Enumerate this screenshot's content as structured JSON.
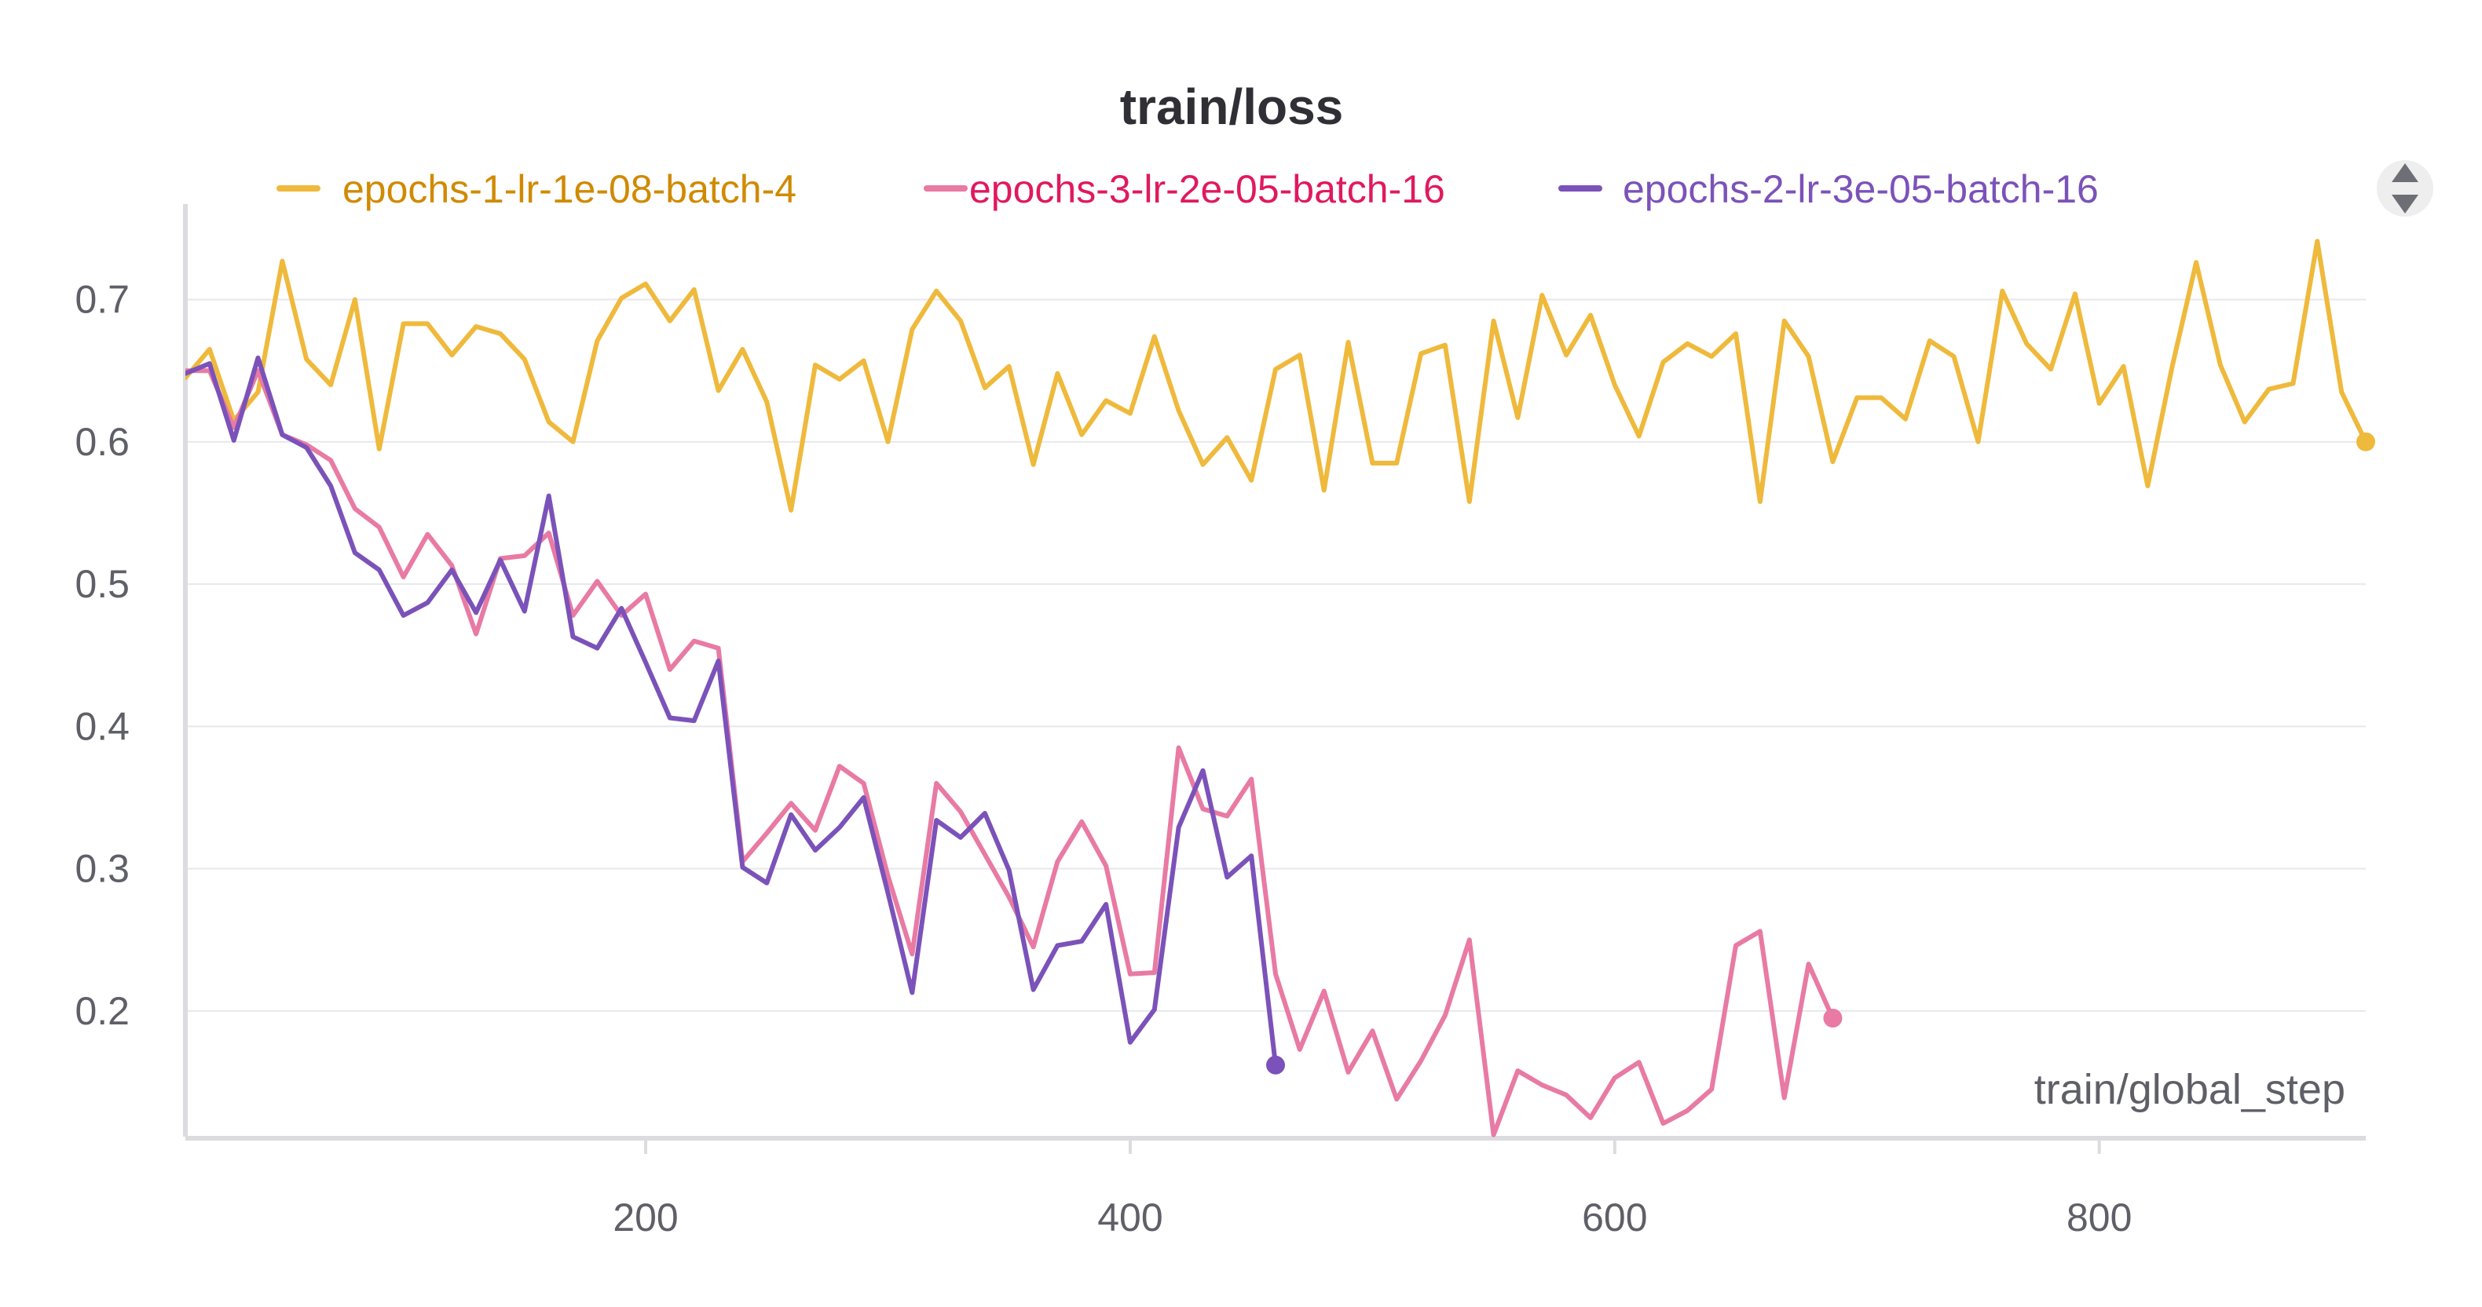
{
  "chart_data": {
    "type": "line",
    "title": "train/loss",
    "xlabel": "train/global_step",
    "ylabel": "",
    "xlim": [
      10,
      910
    ],
    "ylim": [
      0.115,
      0.745
    ],
    "x_ticks": [
      200,
      400,
      600,
      800
    ],
    "y_ticks": [
      0.2,
      0.3,
      0.4,
      0.5,
      0.6,
      0.7
    ],
    "y_tick_labels": [
      "0.2",
      "0.3",
      "0.4",
      "0.5",
      "0.6",
      "0.7"
    ],
    "x_tick_labels": [
      "200",
      "400",
      "600",
      "800"
    ],
    "grid": true,
    "legend_position": "top",
    "legend_control_icon": "sort-arrows-icon",
    "series": [
      {
        "name": "epochs-1-lr-1e-08-batch-4",
        "color": "#efb93c",
        "label_color": "#d08a00",
        "x": [
          10,
          20,
          30,
          40,
          50,
          60,
          70,
          80,
          90,
          100,
          110,
          120,
          130,
          140,
          150,
          160,
          170,
          180,
          190,
          200,
          210,
          220,
          230,
          240,
          250,
          260,
          270,
          280,
          290,
          300,
          310,
          320,
          330,
          340,
          350,
          360,
          370,
          380,
          390,
          400,
          410,
          420,
          430,
          440,
          450,
          460,
          470,
          480,
          490,
          500,
          510,
          520,
          530,
          540,
          550,
          560,
          570,
          580,
          590,
          600,
          610,
          620,
          630,
          640,
          650,
          660,
          670,
          680,
          690,
          700,
          710,
          720,
          730,
          740,
          750,
          760,
          770,
          780,
          790,
          800,
          810,
          820,
          830,
          840,
          850,
          860,
          870,
          880,
          890,
          900,
          910
        ],
        "y": [
          0.645,
          0.665,
          0.615,
          0.635,
          0.727,
          0.658,
          0.64,
          0.7,
          0.595,
          0.683,
          0.683,
          0.661,
          0.681,
          0.676,
          0.658,
          0.614,
          0.6,
          0.671,
          0.701,
          0.711,
          0.685,
          0.707,
          0.636,
          0.665,
          0.628,
          0.552,
          0.654,
          0.644,
          0.657,
          0.6,
          0.679,
          0.706,
          0.685,
          0.638,
          0.653,
          0.584,
          0.648,
          0.605,
          0.629,
          0.62,
          0.674,
          0.622,
          0.584,
          0.603,
          0.573,
          0.651,
          0.661,
          0.566,
          0.67,
          0.585,
          0.585,
          0.662,
          0.668,
          0.558,
          0.685,
          0.617,
          0.703,
          0.661,
          0.689,
          0.64,
          0.604,
          0.656,
          0.669,
          0.66,
          0.676,
          0.558,
          0.685,
          0.66,
          0.586,
          0.631,
          0.631,
          0.616,
          0.671,
          0.66,
          0.6,
          0.706,
          0.669,
          0.651,
          0.704,
          0.627,
          0.653,
          0.569,
          0.652,
          0.726,
          0.654,
          0.614,
          0.637,
          0.641,
          0.741,
          0.635,
          0.6
        ]
      },
      {
        "name": "epochs-3-lr-2e-05-batch-16",
        "color": "#e87aa4",
        "label_color": "#e0195f",
        "x": [
          10,
          20,
          30,
          40,
          50,
          60,
          70,
          80,
          90,
          100,
          110,
          120,
          130,
          140,
          150,
          160,
          170,
          180,
          190,
          200,
          210,
          220,
          230,
          240,
          250,
          260,
          270,
          280,
          290,
          300,
          310,
          320,
          330,
          340,
          350,
          360,
          370,
          380,
          390,
          400,
          410,
          420,
          430,
          440,
          450,
          460,
          470,
          480,
          490,
          500,
          510,
          520,
          530,
          540,
          550,
          560,
          570,
          580,
          590,
          600,
          610,
          620,
          630,
          640,
          650,
          660,
          670,
          680,
          690
        ],
        "y": [
          0.65,
          0.65,
          0.61,
          0.65,
          0.605,
          0.598,
          0.587,
          0.553,
          0.54,
          0.505,
          0.535,
          0.513,
          0.465,
          0.518,
          0.52,
          0.536,
          0.478,
          0.502,
          0.478,
          0.493,
          0.44,
          0.46,
          0.455,
          0.305,
          0.325,
          0.346,
          0.327,
          0.372,
          0.36,
          0.295,
          0.24,
          0.36,
          0.34,
          0.31,
          0.28,
          0.245,
          0.305,
          0.333,
          0.302,
          0.226,
          0.227,
          0.385,
          0.342,
          0.337,
          0.363,
          0.226,
          0.173,
          0.214,
          0.157,
          0.186,
          0.138,
          0.165,
          0.197,
          0.25,
          0.113,
          0.158,
          0.148,
          0.141,
          0.125,
          0.153,
          0.164,
          0.121,
          0.13,
          0.145,
          0.246,
          0.256,
          0.139,
          0.233,
          0.195
        ]
      },
      {
        "name": "epochs-2-lr-3e-05-batch-16",
        "color": "#7b52b9",
        "label_color": "#7b52b9",
        "x": [
          10,
          20,
          30,
          40,
          50,
          60,
          70,
          80,
          90,
          100,
          110,
          120,
          130,
          140,
          150,
          160,
          170,
          180,
          190,
          200,
          210,
          220,
          230,
          240,
          250,
          260,
          270,
          280,
          290,
          300,
          310,
          320,
          330,
          340,
          350,
          360,
          370,
          380,
          390,
          400,
          410,
          420,
          430,
          440,
          450,
          460
        ],
        "y": [
          0.648,
          0.655,
          0.601,
          0.659,
          0.605,
          0.596,
          0.569,
          0.522,
          0.51,
          0.478,
          0.487,
          0.51,
          0.48,
          0.517,
          0.481,
          0.562,
          0.463,
          0.455,
          0.483,
          0.445,
          0.406,
          0.404,
          0.446,
          0.301,
          0.29,
          0.338,
          0.313,
          0.329,
          0.35,
          0.283,
          0.213,
          0.334,
          0.322,
          0.339,
          0.299,
          0.215,
          0.246,
          0.249,
          0.275,
          0.178,
          0.201,
          0.329,
          0.369,
          0.294,
          0.309,
          0.162
        ]
      }
    ]
  }
}
